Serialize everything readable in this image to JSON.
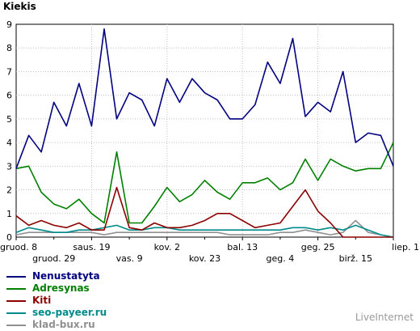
{
  "chart_data": {
    "type": "line",
    "ylabel": "Kiekis",
    "ylim": [
      0,
      9
    ],
    "yticks": [
      0,
      1,
      2,
      3,
      4,
      5,
      6,
      7,
      8,
      9
    ],
    "grid": true,
    "x_tick_labels_upper": [
      "gruod. 8",
      "saus. 19",
      "kov. 2",
      "bal. 13",
      "geg. 25",
      "liep. 1"
    ],
    "x_tick_labels_lower": [
      "gruod. 29",
      "vas. 9",
      "kov. 23",
      "geg. 4",
      "birž. 15"
    ],
    "series": [
      {
        "name": "Nenustatyta",
        "color": "#000080",
        "values": [
          2.9,
          4.3,
          3.6,
          5.7,
          4.7,
          6.5,
          4.7,
          8.8,
          5.0,
          6.1,
          5.8,
          4.7,
          6.7,
          5.7,
          6.7,
          6.1,
          5.8,
          5.0,
          5.0,
          5.6,
          7.4,
          6.5,
          8.4,
          5.1,
          5.7,
          5.3,
          7.0,
          4.0,
          4.4,
          4.3,
          3.0
        ]
      },
      {
        "name": "Adresynas",
        "color": "#008000",
        "values": [
          2.9,
          3.0,
          1.9,
          1.4,
          1.2,
          1.6,
          1.0,
          0.6,
          3.6,
          0.6,
          0.6,
          1.3,
          2.1,
          1.5,
          1.8,
          2.4,
          1.9,
          1.6,
          2.3,
          2.3,
          2.5,
          2.0,
          2.3,
          3.3,
          2.4,
          3.3,
          3.0,
          2.8,
          2.9,
          2.9,
          4.0
        ]
      },
      {
        "name": "Kiti",
        "color": "#8b0000",
        "values": [
          0.9,
          0.5,
          0.7,
          0.5,
          0.4,
          0.6,
          0.3,
          0.3,
          2.1,
          0.4,
          0.3,
          0.6,
          0.4,
          0.4,
          0.5,
          0.7,
          1.0,
          1.0,
          0.7,
          0.4,
          0.5,
          0.6,
          1.3,
          2.0,
          1.1,
          0.6,
          0.0,
          0.0,
          0.0,
          0.0,
          0.0
        ]
      },
      {
        "name": "seo-payeer.ru",
        "color": "#008b8b",
        "values": [
          0.2,
          0.4,
          0.3,
          0.2,
          0.2,
          0.3,
          0.3,
          0.4,
          0.5,
          0.3,
          0.3,
          0.4,
          0.4,
          0.3,
          0.3,
          0.3,
          0.3,
          0.3,
          0.3,
          0.3,
          0.3,
          0.3,
          0.4,
          0.4,
          0.3,
          0.4,
          0.3,
          0.5,
          0.3,
          0.1,
          0.0
        ]
      },
      {
        "name": "klad-bux.ru",
        "color": "#909090",
        "values": [
          0.1,
          0.2,
          0.2,
          0.2,
          0.2,
          0.2,
          0.2,
          0.1,
          0.2,
          0.2,
          0.2,
          0.2,
          0.2,
          0.2,
          0.2,
          0.2,
          0.2,
          0.1,
          0.1,
          0.1,
          0.1,
          0.2,
          0.2,
          0.3,
          0.2,
          0.1,
          0.2,
          0.7,
          0.2,
          0.1,
          0.0
        ]
      }
    ]
  },
  "watermark": "LiveInternet"
}
